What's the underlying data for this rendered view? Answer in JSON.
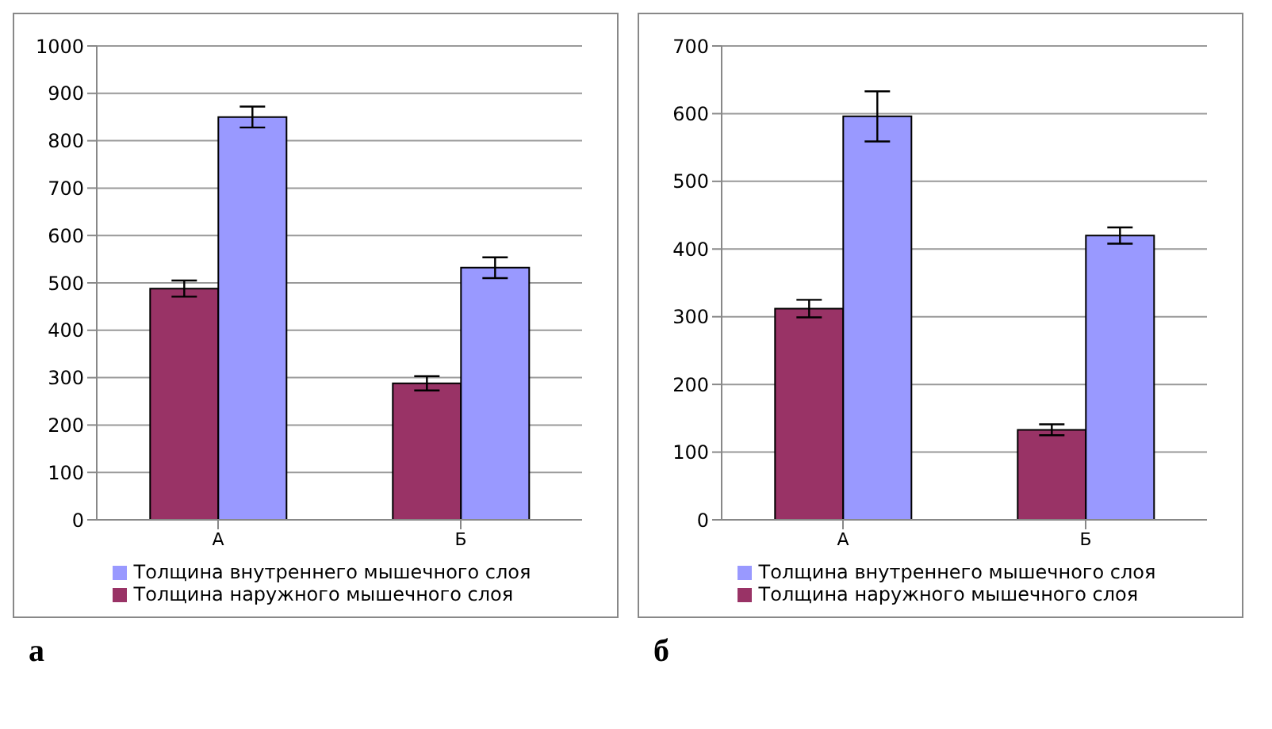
{
  "chart_data": [
    {
      "type": "bar",
      "categories": [
        "А",
        "Б"
      ],
      "series": [
        {
          "name": "Толщина наружного мышечного слоя",
          "color": "#993366",
          "values": [
            488,
            288
          ],
          "errors": [
            17,
            15
          ]
        },
        {
          "name": "Толщина внутреннего мышечного слоя",
          "color": "#9999ff",
          "values": [
            850,
            532
          ],
          "errors": [
            22,
            22
          ]
        }
      ],
      "ylim": [
        0,
        1000
      ],
      "yticks": [
        0,
        100,
        200,
        300,
        400,
        500,
        600,
        700,
        800,
        900,
        1000
      ],
      "grid": "y",
      "legend": "bottom",
      "annotations": [
        "а"
      ]
    },
    {
      "type": "bar",
      "categories": [
        "А",
        "Б"
      ],
      "series": [
        {
          "name": "Толщина наружного мышечного слоя",
          "color": "#993366",
          "values": [
            312,
            133
          ],
          "errors": [
            13,
            8
          ]
        },
        {
          "name": "Толщина внутреннего мышечного слоя",
          "color": "#9999ff",
          "values": [
            596,
            420
          ],
          "errors": [
            37,
            12
          ]
        }
      ],
      "ylim": [
        0,
        700
      ],
      "yticks": [
        0,
        100,
        200,
        300,
        400,
        500,
        600,
        700
      ],
      "grid": "y",
      "legend": "bottom",
      "annotations": [
        "б"
      ]
    }
  ]
}
